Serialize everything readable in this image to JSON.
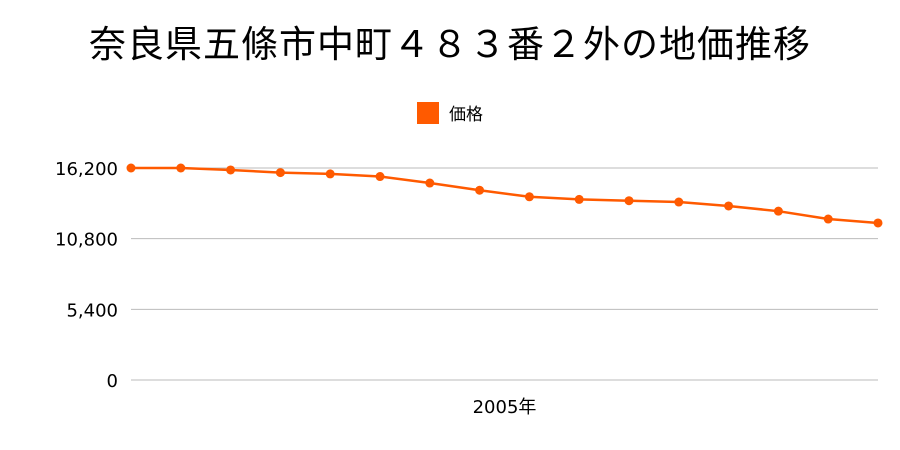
{
  "title": "奈良県五條市中町４８３番２外の地価推移",
  "colors": {
    "line": "#ff5a00",
    "grid": "#bbbbbb"
  },
  "chart_data": {
    "type": "line",
    "title": "奈良県五條市中町４８３番２外の地価推移",
    "legend": {
      "position": "top-center",
      "entries": [
        "価格"
      ]
    },
    "grid": true,
    "ylim": [
      0,
      16200
    ],
    "yticks": [
      0,
      5400,
      10800,
      16200
    ],
    "ytick_labels": [
      "0",
      "5,400",
      "10,800",
      "16,200"
    ],
    "xtick_labels": [
      "2005年"
    ],
    "series": [
      {
        "name": "価格",
        "values": [
          16200,
          16200,
          16050,
          15850,
          15750,
          15550,
          15050,
          14500,
          14000,
          13800,
          13700,
          13600,
          13300,
          12900,
          12300,
          12000
        ]
      }
    ]
  }
}
